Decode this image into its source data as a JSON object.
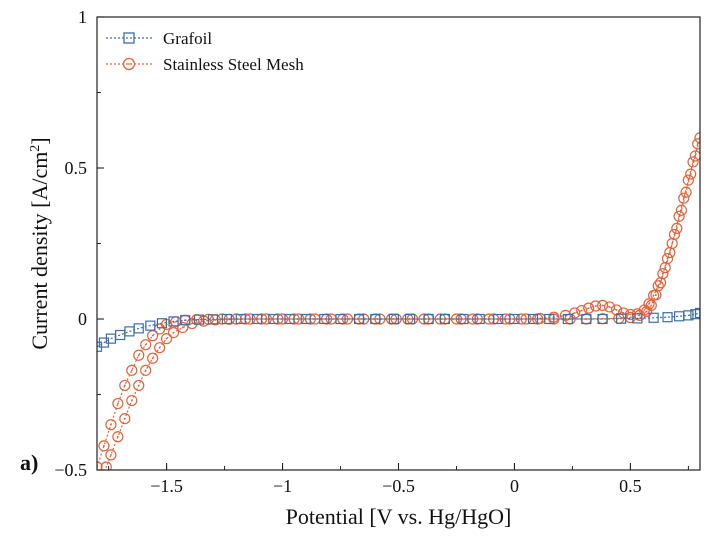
{
  "panel_label": "a)",
  "colors": {
    "grafoil": "#3A6EA8",
    "ssmesh": "#E2623A",
    "axis": "#222222"
  },
  "chart_data": {
    "type": "line",
    "title": "",
    "xlabel": "Potential [V vs. Hg/HgO]",
    "ylabel_main": "Current density [A/cm",
    "ylabel_sup": "2",
    "ylabel_tail": "]",
    "xlim": [
      -1.8,
      0.8
    ],
    "ylim": [
      -0.5,
      1.0
    ],
    "xticks": [
      -1.5,
      -1.0,
      -0.5,
      0.0,
      0.5
    ],
    "xtick_labels": [
      "−1.5",
      "−1",
      "−0.5",
      "0",
      "0.5"
    ],
    "yticks": [
      -0.5,
      0.0,
      0.5,
      1.0
    ],
    "ytick_labels": [
      "−0.5",
      "0",
      "0.5",
      "1"
    ],
    "grid": false,
    "legend_position": "top-left",
    "series": [
      {
        "name": "Grafoil",
        "marker": "square",
        "color": "#3A6EA8",
        "points": [
          [
            -1.8,
            -0.092
          ],
          [
            -1.77,
            -0.078
          ],
          [
            -1.74,
            -0.065
          ],
          [
            -1.7,
            -0.053
          ],
          [
            -1.66,
            -0.041
          ],
          [
            -1.62,
            -0.031
          ],
          [
            -1.57,
            -0.022
          ],
          [
            -1.52,
            -0.014
          ],
          [
            -1.47,
            -0.008
          ],
          [
            -1.42,
            -0.004
          ],
          [
            -1.36,
            -0.002
          ],
          [
            -1.3,
            -0.001
          ],
          [
            -1.24,
            0.0
          ],
          [
            -1.18,
            0.0
          ],
          [
            -1.11,
            0.0
          ],
          [
            -1.04,
            0.0
          ],
          [
            -0.97,
            0.0
          ],
          [
            -0.9,
            0.0
          ],
          [
            -0.82,
            0.0
          ],
          [
            -0.75,
            0.0
          ],
          [
            -0.67,
            0.0
          ],
          [
            -0.6,
            0.0
          ],
          [
            -0.52,
            0.0
          ],
          [
            -0.45,
            0.0
          ],
          [
            -0.37,
            0.0
          ],
          [
            -0.3,
            0.0
          ],
          [
            -0.22,
            0.0
          ],
          [
            -0.15,
            0.0
          ],
          [
            -0.07,
            0.0
          ],
          [
            0.0,
            0.0
          ],
          [
            0.08,
            0.0
          ],
          [
            0.15,
            0.0
          ],
          [
            0.23,
            0.0
          ],
          [
            0.31,
            0.0
          ],
          [
            0.38,
            0.0
          ],
          [
            0.46,
            0.001
          ],
          [
            0.53,
            0.002
          ],
          [
            0.6,
            0.004
          ],
          [
            0.66,
            0.006
          ],
          [
            0.71,
            0.009
          ],
          [
            0.75,
            0.012
          ],
          [
            0.78,
            0.016
          ],
          [
            0.8,
            0.02
          ]
        ]
      },
      {
        "name": "Stainless Steel Mesh",
        "marker": "circle",
        "color": "#E2623A",
        "points_forward": [
          [
            -1.8,
            -0.49
          ],
          [
            -1.77,
            -0.42
          ],
          [
            -1.74,
            -0.35
          ],
          [
            -1.71,
            -0.28
          ],
          [
            -1.68,
            -0.22
          ],
          [
            -1.65,
            -0.17
          ],
          [
            -1.62,
            -0.12
          ],
          [
            -1.59,
            -0.085
          ],
          [
            -1.56,
            -0.055
          ],
          [
            -1.53,
            -0.033
          ],
          [
            -1.5,
            -0.018
          ],
          [
            -1.46,
            -0.009
          ],
          [
            -1.42,
            -0.004
          ],
          [
            -1.37,
            -0.002
          ],
          [
            -1.32,
            -0.001
          ],
          [
            -1.26,
            0.0
          ],
          [
            -1.2,
            0.0
          ],
          [
            -1.14,
            0.0
          ],
          [
            -1.07,
            0.0
          ],
          [
            -1.0,
            0.0
          ],
          [
            -0.93,
            0.0
          ],
          [
            -0.86,
            0.0
          ],
          [
            -0.79,
            0.0
          ],
          [
            -0.72,
            0.0
          ],
          [
            -0.65,
            0.0
          ],
          [
            -0.58,
            0.0
          ],
          [
            -0.51,
            0.0
          ],
          [
            -0.44,
            0.0
          ],
          [
            -0.37,
            0.0
          ],
          [
            -0.3,
            0.0
          ],
          [
            -0.23,
            0.0
          ],
          [
            -0.16,
            0.0
          ],
          [
            -0.09,
            0.0
          ],
          [
            -0.02,
            0.0
          ],
          [
            0.05,
            0.0
          ],
          [
            0.11,
            0.002
          ],
          [
            0.17,
            0.006
          ],
          [
            0.22,
            0.012
          ],
          [
            0.26,
            0.02
          ],
          [
            0.29,
            0.028
          ],
          [
            0.32,
            0.036
          ],
          [
            0.35,
            0.043
          ],
          [
            0.38,
            0.045
          ],
          [
            0.41,
            0.04
          ],
          [
            0.44,
            0.03
          ],
          [
            0.47,
            0.02
          ],
          [
            0.5,
            0.015
          ],
          [
            0.53,
            0.017
          ],
          [
            0.56,
            0.03
          ],
          [
            0.58,
            0.05
          ],
          [
            0.6,
            0.078
          ],
          [
            0.62,
            0.11
          ],
          [
            0.64,
            0.15
          ],
          [
            0.66,
            0.2
          ],
          [
            0.68,
            0.25
          ],
          [
            0.7,
            0.3
          ],
          [
            0.72,
            0.36
          ],
          [
            0.74,
            0.42
          ],
          [
            0.76,
            0.48
          ],
          [
            0.78,
            0.54
          ],
          [
            0.8,
            0.6
          ]
        ],
        "points_return": [
          [
            0.79,
            0.58
          ],
          [
            0.77,
            0.52
          ],
          [
            0.75,
            0.46
          ],
          [
            0.73,
            0.4
          ],
          [
            0.71,
            0.34
          ],
          [
            0.69,
            0.28
          ],
          [
            0.67,
            0.22
          ],
          [
            0.65,
            0.17
          ],
          [
            0.63,
            0.12
          ],
          [
            0.61,
            0.08
          ],
          [
            0.59,
            0.045
          ],
          [
            0.57,
            0.025
          ],
          [
            0.54,
            0.012
          ],
          [
            0.5,
            0.005
          ],
          [
            0.45,
            0.002
          ],
          [
            0.38,
            0.001
          ],
          [
            0.31,
            0.0
          ],
          [
            0.24,
            0.0
          ],
          [
            0.17,
            0.0
          ],
          [
            0.1,
            0.0
          ],
          [
            0.03,
            0.0
          ],
          [
            -0.04,
            0.0
          ],
          [
            -0.11,
            0.0
          ],
          [
            -0.18,
            0.0
          ],
          [
            -0.25,
            0.0
          ],
          [
            -0.32,
            0.0
          ],
          [
            -0.39,
            0.0
          ],
          [
            -0.46,
            0.0
          ],
          [
            -0.53,
            0.0
          ],
          [
            -0.6,
            0.0
          ],
          [
            -0.67,
            0.0
          ],
          [
            -0.74,
            0.0
          ],
          [
            -0.81,
            0.0
          ],
          [
            -0.88,
            0.0
          ],
          [
            -0.95,
            0.0
          ],
          [
            -1.02,
            0.0
          ],
          [
            -1.09,
            0.0
          ],
          [
            -1.16,
            0.0
          ],
          [
            -1.23,
            -0.001
          ],
          [
            -1.29,
            -0.003
          ],
          [
            -1.34,
            -0.007
          ],
          [
            -1.39,
            -0.015
          ],
          [
            -1.43,
            -0.028
          ],
          [
            -1.47,
            -0.045
          ],
          [
            -1.5,
            -0.065
          ],
          [
            -1.53,
            -0.095
          ],
          [
            -1.56,
            -0.13
          ],
          [
            -1.59,
            -0.17
          ],
          [
            -1.62,
            -0.22
          ],
          [
            -1.65,
            -0.27
          ],
          [
            -1.68,
            -0.33
          ],
          [
            -1.71,
            -0.39
          ],
          [
            -1.74,
            -0.45
          ],
          [
            -1.76,
            -0.49
          ]
        ]
      }
    ]
  }
}
